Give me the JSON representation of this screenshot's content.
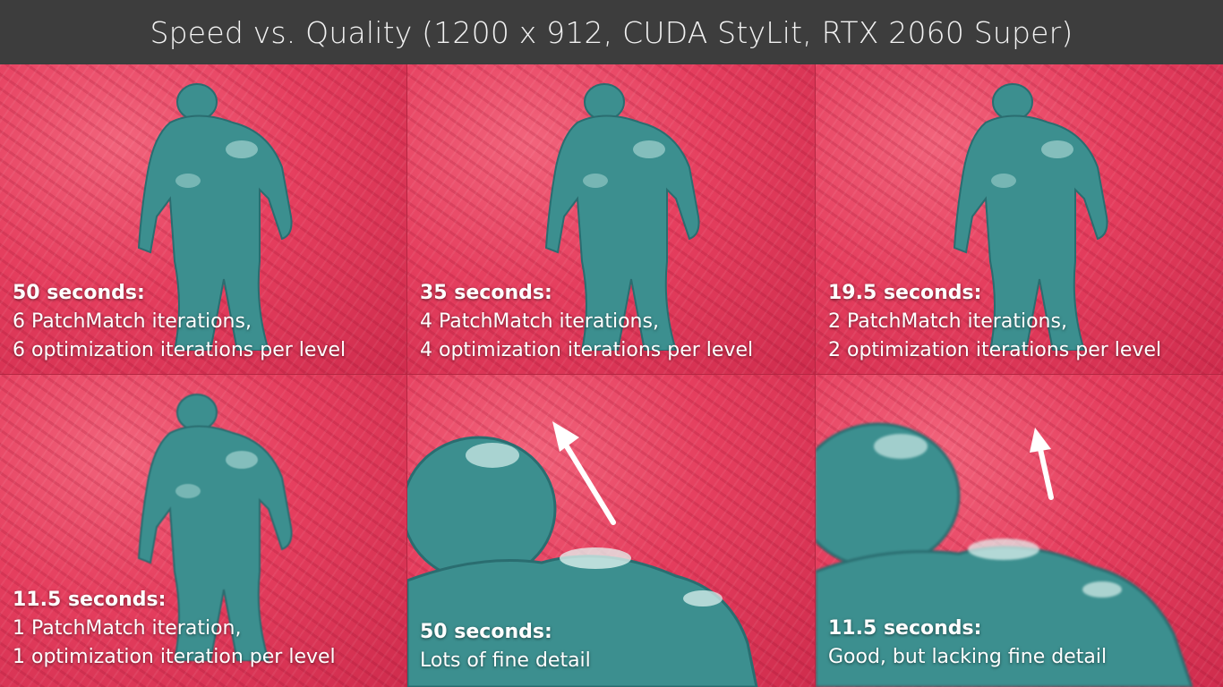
{
  "title": "Speed vs. Quality (1200 x 912, CUDA StyLit, RTX 2060 Super)",
  "colors": {
    "title_bg": "#3d3d3d",
    "paper_red": "#e53e5e",
    "figure_teal": "#3c8f8f"
  },
  "panels": [
    {
      "time": "50 seconds:",
      "lines": [
        "6 PatchMatch iterations,",
        "6 optimization iterations per level"
      ]
    },
    {
      "time": "35 seconds:",
      "lines": [
        "4 PatchMatch iterations,",
        "4 optimization iterations per level"
      ]
    },
    {
      "time": "19.5 seconds:",
      "lines": [
        "2 PatchMatch iterations,",
        "2 optimization iterations per level"
      ]
    },
    {
      "time": "11.5 seconds:",
      "lines": [
        "1 PatchMatch iteration,",
        "1 optimization iteration per level"
      ]
    },
    {
      "time": "50 seconds:",
      "lines": [
        "Lots of fine detail"
      ]
    },
    {
      "time": "11.5 seconds:",
      "lines": [
        "Good, but lacking fine detail"
      ]
    }
  ]
}
